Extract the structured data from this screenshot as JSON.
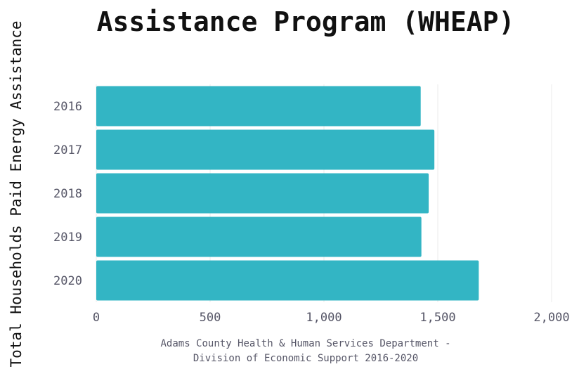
{
  "chart_data": {
    "type": "bar",
    "orientation": "horizontal",
    "title": "Assistance Program (WHEAP)",
    "ylabel": "Total Households Paid Energy Assistance",
    "xlabel": "Adams County Health & Human Services Department - Division of Economic Support 2016-2020",
    "xlabel_lines": [
      "Adams County Health & Human Services Department -",
      "Division of Economic Support 2016-2020"
    ],
    "categories": [
      "2016",
      "2017",
      "2018",
      "2019",
      "2020"
    ],
    "values": [
      1425,
      1485,
      1460,
      1428,
      1680
    ],
    "xlim": [
      0,
      2000
    ],
    "xticks": [
      0,
      500,
      1000,
      1500,
      2000
    ],
    "xtick_labels": [
      "0",
      "500",
      "1,000",
      "1,500",
      "2,000"
    ],
    "grid": "vertical",
    "bar_color": "#33b5c4",
    "grid_color": "#ebebeb"
  }
}
